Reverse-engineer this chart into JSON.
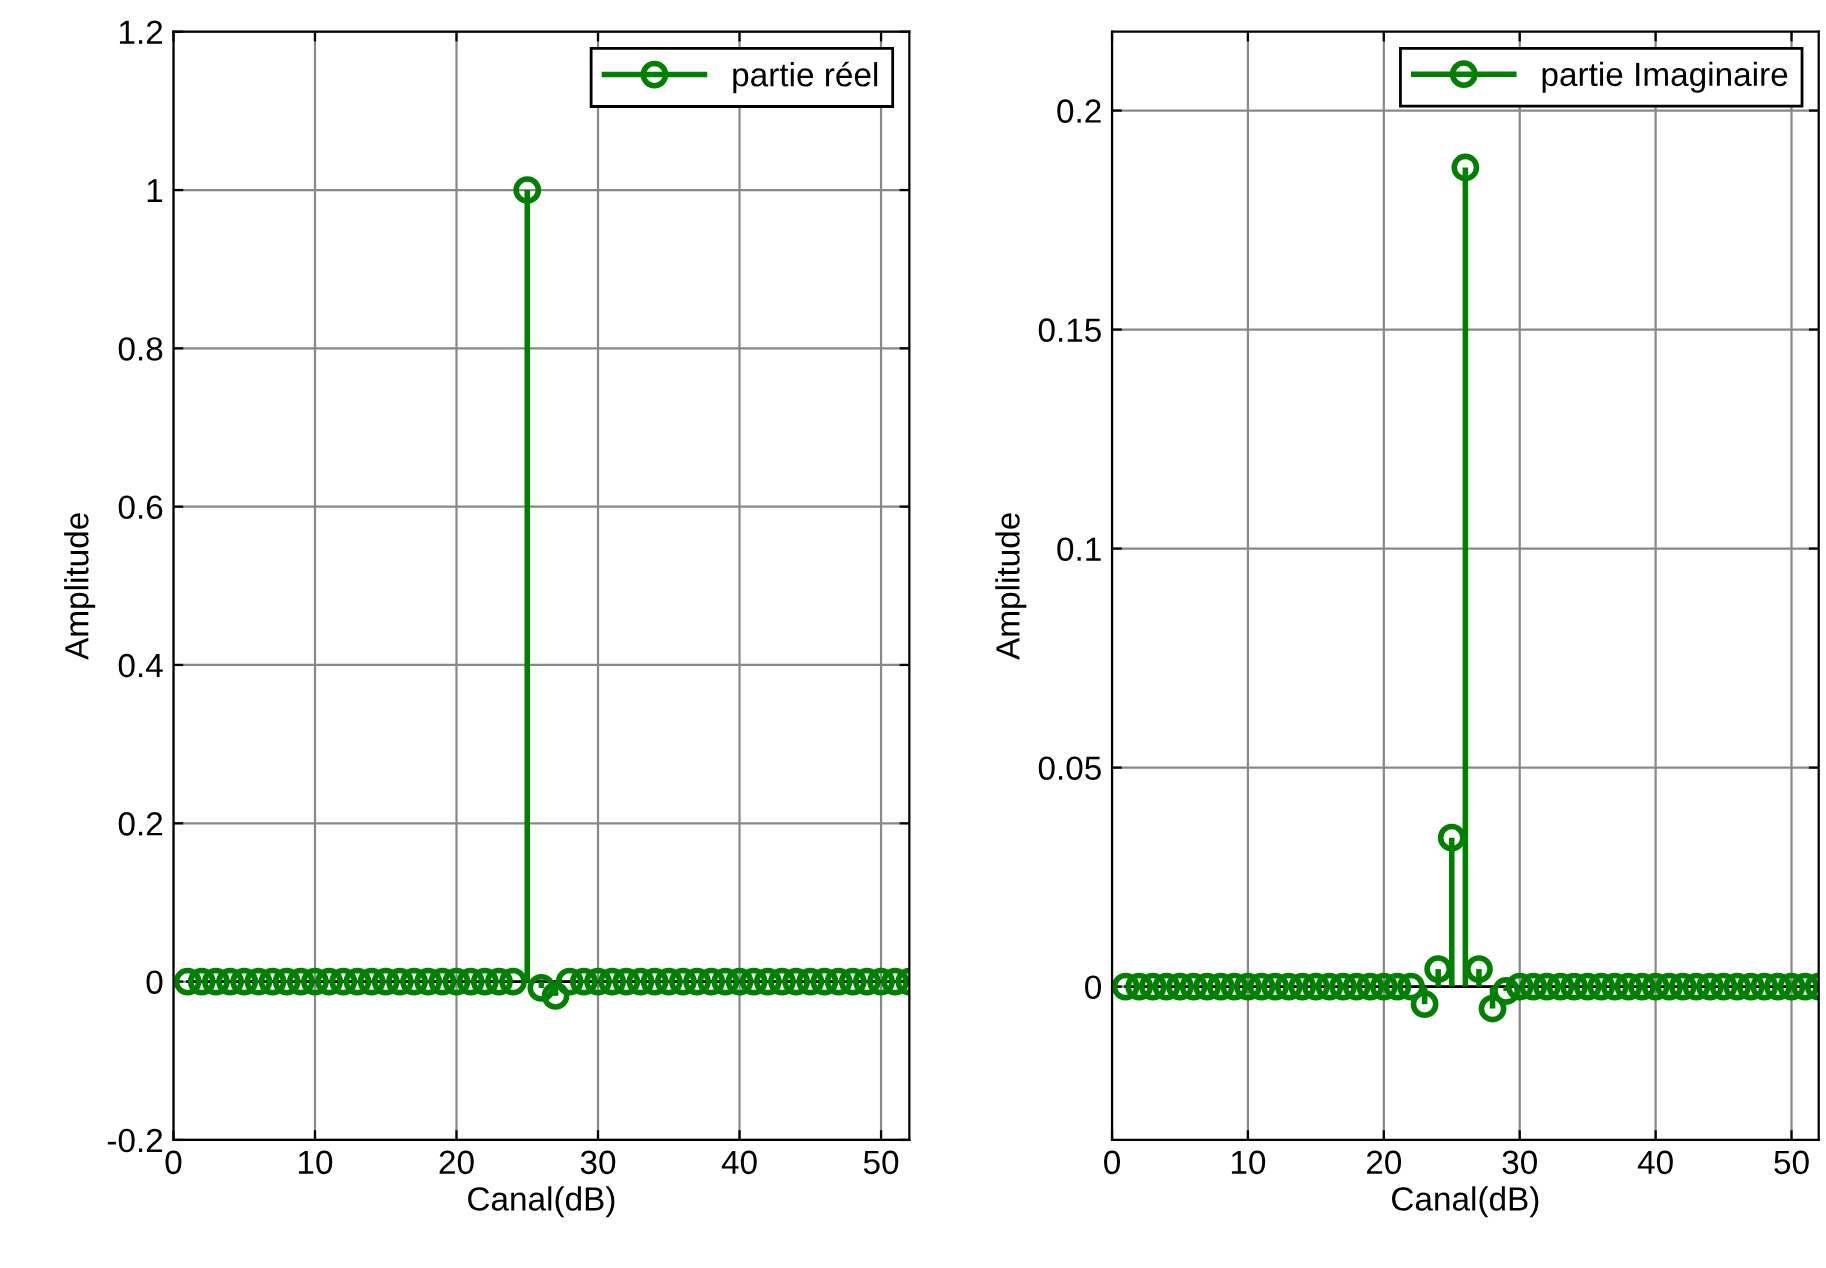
{
  "chart_data": [
    {
      "type": "lollipop",
      "xlabel": "Canal(dB)",
      "ylabel": "Amplitude",
      "x": [
        1,
        2,
        3,
        4,
        5,
        6,
        7,
        8,
        9,
        10,
        11,
        12,
        13,
        14,
        15,
        16,
        17,
        18,
        19,
        20,
        21,
        22,
        23,
        24,
        25,
        26,
        27,
        28,
        29,
        30,
        31,
        32,
        33,
        34,
        35,
        36,
        37,
        38,
        39,
        40,
        41,
        42,
        43,
        44,
        45,
        46,
        47,
        48,
        49,
        50,
        51,
        52
      ],
      "series": [
        {
          "name": "partie réel",
          "color": "#008000",
          "values": [
            0,
            0,
            0,
            0,
            0,
            0,
            0,
            0,
            0,
            0,
            0,
            0,
            0,
            0,
            0,
            0,
            0,
            0,
            0,
            0,
            0,
            0,
            0,
            0,
            1,
            -0.008,
            -0.018,
            0,
            0,
            0,
            0,
            0,
            0,
            0,
            0,
            0,
            0,
            0,
            0,
            0,
            0,
            0,
            0,
            0,
            0,
            0,
            0,
            0,
            0,
            0,
            0,
            0
          ]
        }
      ],
      "xlim": [
        0,
        52
      ],
      "xticks": [
        0,
        10,
        20,
        30,
        40,
        50
      ],
      "ylim": [
        -0.2,
        1.2
      ],
      "yticks": [
        -0.2,
        0,
        0.2,
        0.4,
        0.6,
        0.8,
        1,
        1.2
      ],
      "grid": true,
      "legend": "top right",
      "marker": "circle"
    },
    {
      "type": "lollipop",
      "xlabel": "Canal(dB)",
      "ylabel": "Amplitude",
      "x": [
        1,
        2,
        3,
        4,
        5,
        6,
        7,
        8,
        9,
        10,
        11,
        12,
        13,
        14,
        15,
        16,
        17,
        18,
        19,
        20,
        21,
        22,
        23,
        24,
        25,
        26,
        27,
        28,
        29,
        30,
        31,
        32,
        33,
        34,
        35,
        36,
        37,
        38,
        39,
        40,
        41,
        42,
        43,
        44,
        45,
        46,
        47,
        48,
        49,
        50,
        51,
        52
      ],
      "series": [
        {
          "name": "partie Imaginaire",
          "color": "#008000",
          "values": [
            0,
            0,
            0,
            0,
            0,
            0,
            0,
            0,
            0,
            0,
            0,
            0,
            0,
            0,
            0,
            0,
            0,
            0,
            0,
            0,
            0,
            0,
            -0.004,
            0.004,
            0.034,
            0.187,
            0.004,
            -0.005,
            -0.001,
            0,
            0,
            0,
            0,
            0,
            0,
            0,
            0,
            0,
            0,
            0,
            0,
            0,
            0,
            0,
            0,
            0,
            0,
            0,
            0,
            0,
            0,
            0
          ]
        }
      ],
      "xlim": [
        0,
        52
      ],
      "xticks": [
        0,
        10,
        20,
        30,
        40,
        50
      ],
      "ylim": [
        -0.035,
        0.218
      ],
      "yticks": [
        0,
        0.05,
        0.1,
        0.15,
        0.2
      ],
      "grid": true,
      "legend": "top right",
      "marker": "circle"
    }
  ]
}
